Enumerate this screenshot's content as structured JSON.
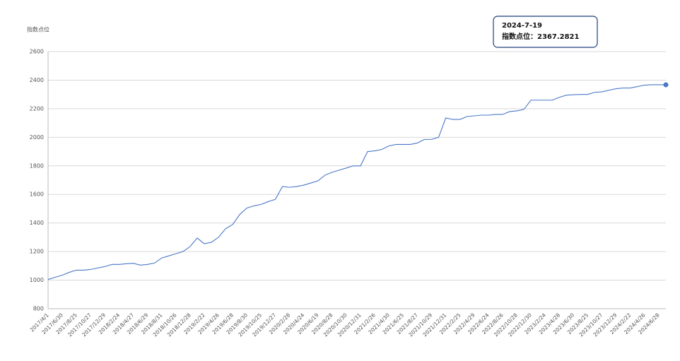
{
  "chart_data": {
    "type": "line",
    "y_label": "指数点位",
    "color": "#4a78c8",
    "grid": true,
    "ylim": [
      800,
      2600
    ],
    "yticks": [
      800,
      1000,
      1200,
      1400,
      1600,
      1800,
      2000,
      2200,
      2400,
      2600
    ],
    "categories": [
      "2017/4/1",
      null,
      "2017/6/30",
      null,
      "2017/8/25",
      null,
      "2017/10/27",
      null,
      "2017/12/29",
      null,
      "2018/2/24",
      null,
      "2018/4/27",
      null,
      "2018/6/29",
      null,
      "2018/8/31",
      null,
      "2018/10/26",
      null,
      "2018/12/28",
      null,
      "2019/2/22",
      null,
      "2019/4/26",
      null,
      "2019/6/28",
      null,
      "2019/8/30",
      null,
      "2019/10/25",
      null,
      "2019/12/27",
      null,
      "2020/2/28",
      null,
      "2020/4/24",
      null,
      "2020/6/19",
      null,
      "2020/8/28",
      null,
      "2020/10/30",
      null,
      "2020/12/31",
      null,
      "2021/2/26",
      null,
      "2021/4/30",
      null,
      "2021/6/25",
      null,
      "2021/8/27",
      null,
      "2021/10/29",
      null,
      "2021/12/31",
      null,
      "2022/2/25",
      null,
      "2022/4/29",
      null,
      "2022/6/24",
      null,
      "2022/8/26",
      null,
      "2022/10/28",
      null,
      "2022/12/30",
      null,
      "2023/2/24",
      null,
      "2023/4/28",
      null,
      "2023/6/30",
      null,
      "2023/8/25",
      null,
      "2023/10/27",
      null,
      "2023/12/29",
      null,
      "2024/2/22",
      null,
      "2024/4/26",
      null,
      "2024/6/28",
      null
    ],
    "values": [
      1005,
      1020,
      1035,
      1055,
      1070,
      1070,
      1075,
      1085,
      1095,
      1110,
      1110,
      1115,
      1118,
      1105,
      1110,
      1120,
      1155,
      1170,
      1185,
      1200,
      1235,
      1295,
      1255,
      1265,
      1300,
      1360,
      1390,
      1460,
      1505,
      1520,
      1530,
      1550,
      1565,
      1655,
      1650,
      1655,
      1665,
      1680,
      1695,
      1735,
      1755,
      1770,
      1785,
      1800,
      1800,
      1900,
      1905,
      1915,
      1940,
      1950,
      1950,
      1950,
      1960,
      1985,
      1985,
      2000,
      2135,
      2125,
      2125,
      2145,
      2150,
      2155,
      2155,
      2160,
      2160,
      2180,
      2185,
      2195,
      2260,
      2260,
      2260,
      2260,
      2280,
      2295,
      2298,
      2300,
      2300,
      2315,
      2318,
      2330,
      2340,
      2345,
      2345,
      2355,
      2365,
      2368,
      2368,
      2367.2821
    ],
    "tooltip": {
      "title": "2024-7-19",
      "text": "指数点位：2367.2821"
    }
  }
}
